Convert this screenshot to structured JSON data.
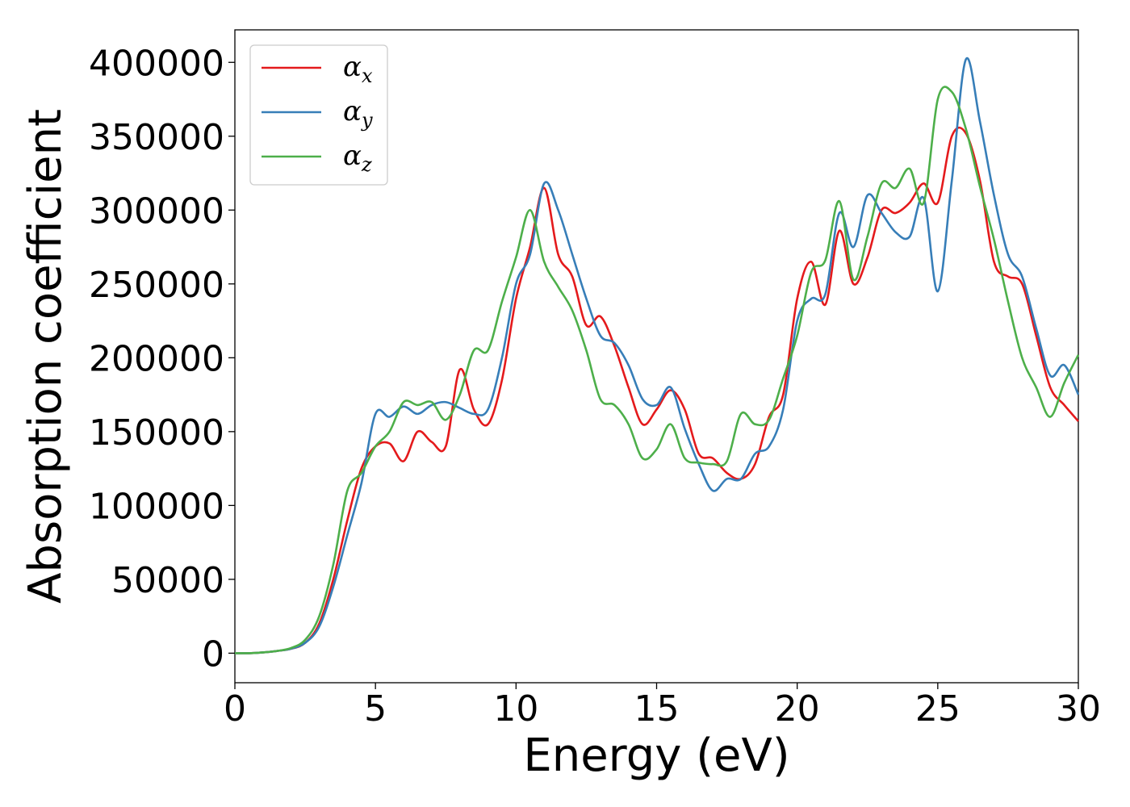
{
  "chart_data": {
    "type": "line",
    "xlabel": "Energy (eV)",
    "ylabel": "Absorption coefficient",
    "xlim": [
      0,
      30
    ],
    "ylim": [
      -20000,
      422000
    ],
    "x_ticks": [
      0,
      5,
      10,
      15,
      20,
      25,
      30
    ],
    "y_ticks": [
      0,
      50000,
      100000,
      150000,
      200000,
      250000,
      300000,
      350000,
      400000
    ],
    "grid": false,
    "legend_position": "top-left",
    "x": [
      0,
      0.5,
      1,
      1.5,
      2,
      2.5,
      3,
      3.5,
      4,
      4.5,
      5,
      5.5,
      6,
      6.5,
      7,
      7.5,
      8,
      8.5,
      9,
      9.5,
      10,
      10.5,
      11,
      11.5,
      12,
      12.5,
      13,
      13.5,
      14,
      14.5,
      15,
      15.5,
      16,
      16.5,
      17,
      17.5,
      18,
      18.5,
      19,
      19.5,
      20,
      20.5,
      21,
      21.5,
      22,
      22.5,
      23,
      23.5,
      24,
      24.5,
      25,
      25.5,
      26,
      26.5,
      27,
      27.5,
      28,
      28.5,
      29,
      29.5,
      30
    ],
    "series": [
      {
        "name": "α",
        "subscript": "x",
        "color": "#e41a1c",
        "values": [
          0,
          0,
          500,
          1500,
          3000,
          7000,
          20000,
          50000,
          90000,
          125000,
          140000,
          142000,
          130000,
          150000,
          143000,
          140000,
          192000,
          165000,
          155000,
          185000,
          240000,
          275000,
          315000,
          270000,
          255000,
          222000,
          228000,
          208000,
          180000,
          155000,
          165000,
          178000,
          165000,
          135000,
          132000,
          122000,
          118000,
          128000,
          160000,
          175000,
          240000,
          265000,
          236000,
          286000,
          250000,
          268000,
          300000,
          298000,
          305000,
          318000,
          305000,
          350000,
          352000,
          320000,
          265000,
          255000,
          250000,
          215000,
          180000,
          168000,
          157000
        ]
      },
      {
        "name": "α",
        "subscript": "y",
        "color": "#377eb8",
        "values": [
          0,
          0,
          500,
          1500,
          3000,
          7000,
          18000,
          45000,
          80000,
          115000,
          162000,
          160000,
          167000,
          162000,
          168000,
          170000,
          166000,
          162000,
          165000,
          200000,
          250000,
          270000,
          318000,
          300000,
          270000,
          240000,
          215000,
          210000,
          195000,
          172000,
          168000,
          180000,
          152000,
          128000,
          110000,
          118000,
          118000,
          135000,
          140000,
          165000,
          225000,
          240000,
          243000,
          298000,
          275000,
          310000,
          298000,
          285000,
          282000,
          308000,
          245000,
          320000,
          402000,
          360000,
          310000,
          270000,
          255000,
          220000,
          188000,
          195000,
          175000
        ]
      },
      {
        "name": "α",
        "subscript": "z",
        "color": "#4daf4a",
        "values": [
          0,
          0,
          500,
          1500,
          3500,
          9000,
          25000,
          60000,
          110000,
          122000,
          140000,
          150000,
          170000,
          168000,
          170000,
          158000,
          175000,
          205000,
          205000,
          238000,
          268000,
          300000,
          265000,
          248000,
          232000,
          205000,
          172000,
          168000,
          155000,
          132000,
          138000,
          155000,
          132000,
          129000,
          128000,
          130000,
          162000,
          155000,
          158000,
          186000,
          215000,
          258000,
          266000,
          306000,
          253000,
          282000,
          318000,
          315000,
          328000,
          305000,
          375000,
          380000,
          355000,
          316000,
          280000,
          238000,
          200000,
          180000,
          160000,
          183000,
          202000
        ]
      }
    ]
  }
}
